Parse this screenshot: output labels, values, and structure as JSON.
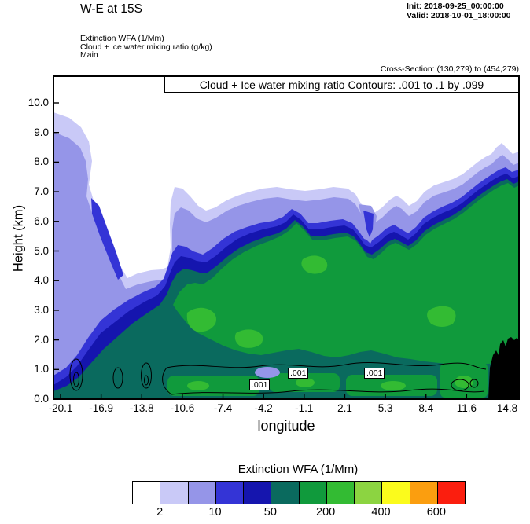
{
  "header": {
    "title": "W-E at 15S",
    "init": "Init: 2018-09-25_00:00:00",
    "valid": "Valid: 2018-10-01_18:00:00",
    "field_lines": [
      "Extinction WFA  (1/Mm)",
      "Cloud + ice water mixing ratio   (g/kg)",
      "Main"
    ],
    "cross_section": "Cross-Section: (130,279) to (454,279)"
  },
  "plot": {
    "contour_title": "Cloud + Ice water mixing ratio Contours: .001 to .1 by .099",
    "ylabel": "Height (km)",
    "xlabel": "longitude",
    "x_ticks": [
      "-20.1",
      "-16.9",
      "-13.8",
      "-10.6",
      "-7.4",
      "-4.2",
      "-1.1",
      "2.1",
      "5.3",
      "8.4",
      "11.6",
      "14.8"
    ],
    "y_ticks": [
      "0.0",
      "1.0",
      "2.0",
      "3.0",
      "4.0",
      "5.0",
      "6.0",
      "7.0",
      "8.0",
      "9.0",
      "10.0"
    ],
    "contour_label": ".001",
    "terrain_color": "#000000"
  },
  "colorbar": {
    "title": "Extinction WFA  (1/Mm)",
    "labels": [
      "2",
      "10",
      "50",
      "200",
      "400",
      "600"
    ],
    "label_boundary_indices": [
      1,
      3,
      5,
      7,
      9,
      11
    ],
    "colors": [
      "#ffffff",
      "#c9c9f7",
      "#9595e8",
      "#3434d6",
      "#1515ae",
      "#0a6a5e",
      "#109a3c",
      "#33bb33",
      "#8cd441",
      "#fbfb1c",
      "#fb9e0f",
      "#fb1e0e"
    ]
  },
  "chart_data": {
    "type": "heatmap",
    "subtype": "filled-contour-vertical-cross-section",
    "title": "Cloud + Ice water mixing ratio Contours: .001 to .1 by .099",
    "suptitle": "W-E at 15S",
    "xlabel": "longitude",
    "ylabel": "Height (km)",
    "xlim": [
      -20.1,
      14.8
    ],
    "ylim": [
      0.0,
      10.8
    ],
    "x_ticks": [
      -20.1,
      -16.9,
      -13.8,
      -10.6,
      -7.4,
      -4.2,
      -1.1,
      2.1,
      5.3,
      8.4,
      11.6,
      14.8
    ],
    "y_ticks": [
      0.0,
      1.0,
      2.0,
      3.0,
      4.0,
      5.0,
      6.0,
      7.0,
      8.0,
      9.0,
      10.0
    ],
    "fill_field": "Extinction WFA (1/Mm)",
    "contour_field": "Cloud + ice water mixing ratio (g/kg)",
    "contour_levels": [
      0.001,
      0.1
    ],
    "contour_interval": 0.099,
    "contour_line_label": ".001",
    "colorbar_boundary_labels": [
      2,
      10,
      50,
      200,
      400,
      600
    ],
    "colorbar_colors": [
      "#ffffff",
      "#c9c9f7",
      "#9595e8",
      "#3434d6",
      "#1515ae",
      "#0a6a5e",
      "#109a3c",
      "#33bb33",
      "#8cd441",
      "#fbfb1c",
      "#fb9e0f",
      "#fb1e0e"
    ],
    "approx_cloud_top_km": {
      "x": [
        -20.1,
        -16.9,
        -13.8,
        -10.6,
        -7.4,
        -4.2,
        -1.1,
        2.1,
        5.3,
        8.4,
        11.6,
        14.8
      ],
      "top_km": [
        9.7,
        6.3,
        4.3,
        7.1,
        6.7,
        7.1,
        7.0,
        7.1,
        6.5,
        7.0,
        7.8,
        8.5
      ]
    },
    "notes": "Filled extinction shading: lavender/blue shell (2-50 1/Mm) with dark-teal and green cores (50-400 1/Mm) between ~0.5 and 6.5 km; thin .001 g/kg mixing-ratio contour lines near 0.5-1 km; black terrain wedge near x=13 to 14.8 up to ~2 km.",
    "cross_section_points": "(130,279) to (454,279)",
    "init_time": "2018-09-25_00:00:00",
    "valid_time": "2018-10-01_18:00:00"
  }
}
